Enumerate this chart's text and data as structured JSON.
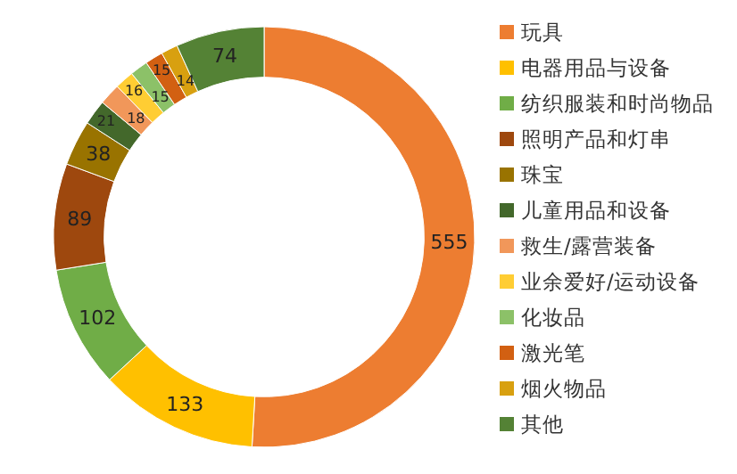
{
  "chart_data": {
    "type": "donut",
    "categories": [
      "玩具",
      "电器用品与设备",
      "纺织服装和时尚物品",
      "照明产品和灯串",
      "珠宝",
      "儿童用品和设备",
      "救生/露营装备",
      "业余爱好/运动设备",
      "化妆品",
      "激光笔",
      "烟火物品",
      "其他"
    ],
    "values": [
      555,
      133,
      102,
      89,
      38,
      21,
      18,
      16,
      15,
      15,
      14,
      74
    ],
    "colors": [
      "#ed7d31",
      "#ffc000",
      "#70ad47",
      "#9e480e",
      "#997300",
      "#43682b",
      "#f1975a",
      "#ffcd33",
      "#8cc168",
      "#d26012",
      "#d8a010",
      "#548235"
    ],
    "data_labels": true,
    "legend": "right"
  }
}
